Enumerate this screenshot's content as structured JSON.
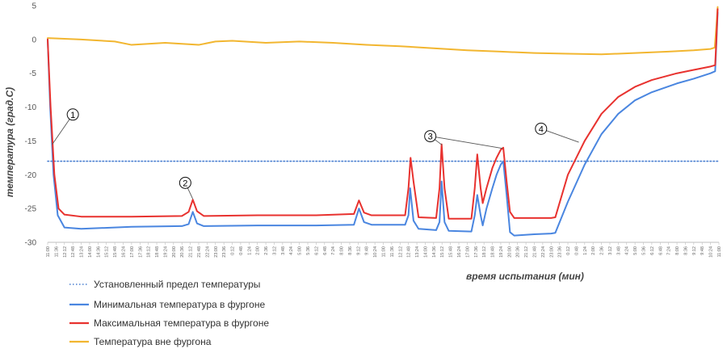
{
  "chart_data": {
    "type": "line",
    "xlabel": "время испытания (мин)",
    "ylabel": "температура (град.С)",
    "ylim": [
      -30,
      5
    ],
    "yticks": [
      5,
      0,
      -5,
      -10,
      -15,
      -20,
      -25,
      -30
    ],
    "grid": false,
    "legend_position": "bottom-left",
    "x_tick_labels": [
      "11:00",
      "11:36",
      "12:12",
      "12:48",
      "13:24",
      "14:00",
      "14:36",
      "15:12",
      "15:48",
      "16:24",
      "17:00",
      "17:36",
      "18:12",
      "18:48",
      "19:24",
      "20:00",
      "20:36",
      "21:12",
      "21:48",
      "22:24",
      "23:00",
      "23:36",
      "0:12",
      "0:48",
      "1:24",
      "2:00",
      "2:36",
      "3:12",
      "3:48",
      "4:24",
      "5:00",
      "5:36",
      "6:12",
      "6:48",
      "7:24",
      "8:00",
      "8:36",
      "9:12",
      "9:48",
      "10:24",
      "11:00",
      "11:36",
      "12:12",
      "12:48",
      "13:24",
      "14:00",
      "14:36",
      "15:12",
      "15:48",
      "16:24",
      "17:00",
      "17:36",
      "18:12",
      "18:48",
      "19:24",
      "20:00",
      "20:36",
      "21:12",
      "21:48",
      "22:24",
      "23:00",
      "23:36",
      "0:12",
      "0:48",
      "1:24",
      "2:00",
      "2:36",
      "3:12",
      "3:48",
      "4:24",
      "5:00",
      "5:36",
      "6:12",
      "6:48",
      "7:24",
      "8:00",
      "8:36",
      "9:12",
      "9:48",
      "10:24",
      "11:00"
    ],
    "x_range": [
      0,
      80
    ],
    "series": [
      {
        "name": "Установленный предел температуры",
        "color": "#4a7fd0",
        "style": "dotted",
        "points": [
          [
            0,
            -18
          ],
          [
            80,
            -18
          ]
        ]
      },
      {
        "name": "Минимальная температура в фургоне",
        "color": "#4a86e0",
        "style": "solid",
        "points": [
          [
            0,
            0
          ],
          [
            0.3,
            -10
          ],
          [
            0.7,
            -20
          ],
          [
            1.2,
            -26
          ],
          [
            2,
            -27.8
          ],
          [
            4,
            -28
          ],
          [
            10,
            -27.7
          ],
          [
            16,
            -27.6
          ],
          [
            16.8,
            -27.3
          ],
          [
            17.3,
            -25.5
          ],
          [
            17.8,
            -27.2
          ],
          [
            18.6,
            -27.6
          ],
          [
            25,
            -27.5
          ],
          [
            32,
            -27.5
          ],
          [
            36.5,
            -27.4
          ],
          [
            37.1,
            -25
          ],
          [
            37.7,
            -27
          ],
          [
            38.6,
            -27.4
          ],
          [
            42.6,
            -27.4
          ],
          [
            43,
            -26
          ],
          [
            43.2,
            -22
          ],
          [
            43.6,
            -26.8
          ],
          [
            44.2,
            -28
          ],
          [
            46.3,
            -28.2
          ],
          [
            46.7,
            -27
          ],
          [
            46.95,
            -21
          ],
          [
            47.3,
            -27
          ],
          [
            47.8,
            -28.3
          ],
          [
            50.5,
            -28.4
          ],
          [
            50.9,
            -26
          ],
          [
            51.2,
            -23
          ],
          [
            51.6,
            -26
          ],
          [
            51.85,
            -27.5
          ],
          [
            52.3,
            -25
          ],
          [
            53,
            -22
          ],
          [
            53.5,
            -20
          ],
          [
            54,
            -18.5
          ],
          [
            54.3,
            -18
          ],
          [
            54.7,
            -23
          ],
          [
            55.1,
            -28.5
          ],
          [
            55.6,
            -29
          ],
          [
            58,
            -28.8
          ],
          [
            60,
            -28.7
          ],
          [
            60.5,
            -28.6
          ],
          [
            62,
            -24
          ],
          [
            64,
            -18.5
          ],
          [
            66,
            -14
          ],
          [
            68,
            -11
          ],
          [
            70,
            -9
          ],
          [
            72,
            -7.8
          ],
          [
            75,
            -6.5
          ],
          [
            77,
            -5.8
          ],
          [
            79,
            -5
          ],
          [
            79.55,
            -4.7
          ],
          [
            79.7,
            -0.5
          ],
          [
            79.85,
            4
          ]
        ]
      },
      {
        "name": "Максимальная температура в фургоне",
        "color": "#e8322f",
        "style": "solid",
        "points": [
          [
            0,
            0
          ],
          [
            0.35,
            -10
          ],
          [
            0.8,
            -20
          ],
          [
            1.3,
            -25
          ],
          [
            2,
            -25.9
          ],
          [
            4,
            -26.2
          ],
          [
            10,
            -26.2
          ],
          [
            16,
            -26.1
          ],
          [
            16.8,
            -25.5
          ],
          [
            17.3,
            -23.7
          ],
          [
            17.8,
            -25.4
          ],
          [
            18.6,
            -26.1
          ],
          [
            25,
            -26
          ],
          [
            32,
            -26
          ],
          [
            36.5,
            -25.8
          ],
          [
            37.1,
            -23.8
          ],
          [
            37.7,
            -25.6
          ],
          [
            38.6,
            -26
          ],
          [
            42.6,
            -26
          ],
          [
            43,
            -22
          ],
          [
            43.25,
            -17.5
          ],
          [
            43.6,
            -21
          ],
          [
            44.2,
            -26.3
          ],
          [
            46.3,
            -26.4
          ],
          [
            46.7,
            -22
          ],
          [
            46.95,
            -15.5
          ],
          [
            47.3,
            -22
          ],
          [
            47.8,
            -26.5
          ],
          [
            50.5,
            -26.5
          ],
          [
            50.9,
            -22
          ],
          [
            51.2,
            -17
          ],
          [
            51.6,
            -22
          ],
          [
            51.85,
            -24.2
          ],
          [
            52.3,
            -22
          ],
          [
            53,
            -19
          ],
          [
            53.5,
            -17.5
          ],
          [
            54,
            -16.3
          ],
          [
            54.3,
            -16
          ],
          [
            54.7,
            -21
          ],
          [
            55.1,
            -25.5
          ],
          [
            55.6,
            -26.4
          ],
          [
            58,
            -26.4
          ],
          [
            60,
            -26.4
          ],
          [
            60.5,
            -26.3
          ],
          [
            62,
            -20
          ],
          [
            64,
            -15
          ],
          [
            66,
            -11
          ],
          [
            68,
            -8.5
          ],
          [
            70,
            -7
          ],
          [
            72,
            -6
          ],
          [
            75,
            -5
          ],
          [
            77,
            -4.5
          ],
          [
            79,
            -4
          ],
          [
            79.55,
            -3.8
          ],
          [
            79.7,
            0
          ],
          [
            79.85,
            4.5
          ]
        ]
      },
      {
        "name": "Температура вне фургона",
        "color": "#f2b630",
        "style": "solid",
        "points": [
          [
            0,
            0.2
          ],
          [
            4,
            0
          ],
          [
            8,
            -0.3
          ],
          [
            10,
            -0.8
          ],
          [
            14,
            -0.5
          ],
          [
            18,
            -0.8
          ],
          [
            20,
            -0.3
          ],
          [
            22,
            -0.2
          ],
          [
            26,
            -0.5
          ],
          [
            30,
            -0.3
          ],
          [
            34,
            -0.5
          ],
          [
            38,
            -0.8
          ],
          [
            42,
            -1
          ],
          [
            46,
            -1.3
          ],
          [
            50,
            -1.6
          ],
          [
            54,
            -1.8
          ],
          [
            58,
            -2
          ],
          [
            62,
            -2.1
          ],
          [
            66,
            -2.2
          ],
          [
            70,
            -2
          ],
          [
            74,
            -1.8
          ],
          [
            77,
            -1.6
          ],
          [
            79,
            -1.4
          ],
          [
            79.5,
            -1.2
          ],
          [
            79.7,
            2
          ],
          [
            79.85,
            4.8
          ]
        ]
      }
    ],
    "annotations": [
      {
        "label": "①",
        "series": "Минимальная температура в фургоне",
        "target": [
          0.55,
          -15.5
        ],
        "anchor": [
          3.0,
          -11.1
        ]
      },
      {
        "label": "②",
        "series": "Максимальная температура в фургоне",
        "target": [
          17.3,
          -23.6
        ],
        "anchor": [
          16.4,
          -21.2
        ]
      },
      {
        "label": "③",
        "series": "Максимальная температура в фургоне",
        "target": [
          47.0,
          -15.6
        ],
        "anchor": [
          45.6,
          -14.3
        ]
      },
      {
        "label": "③",
        "series": "Максимальная температура в фургоне",
        "target": [
          54.2,
          -16.1
        ],
        "anchor": [
          45.6,
          -14.3
        ]
      },
      {
        "label": "④",
        "series": "Минимальная температура в фургоне",
        "target": [
          63.3,
          -15.2
        ],
        "anchor": [
          58.8,
          -13.2
        ]
      }
    ]
  }
}
